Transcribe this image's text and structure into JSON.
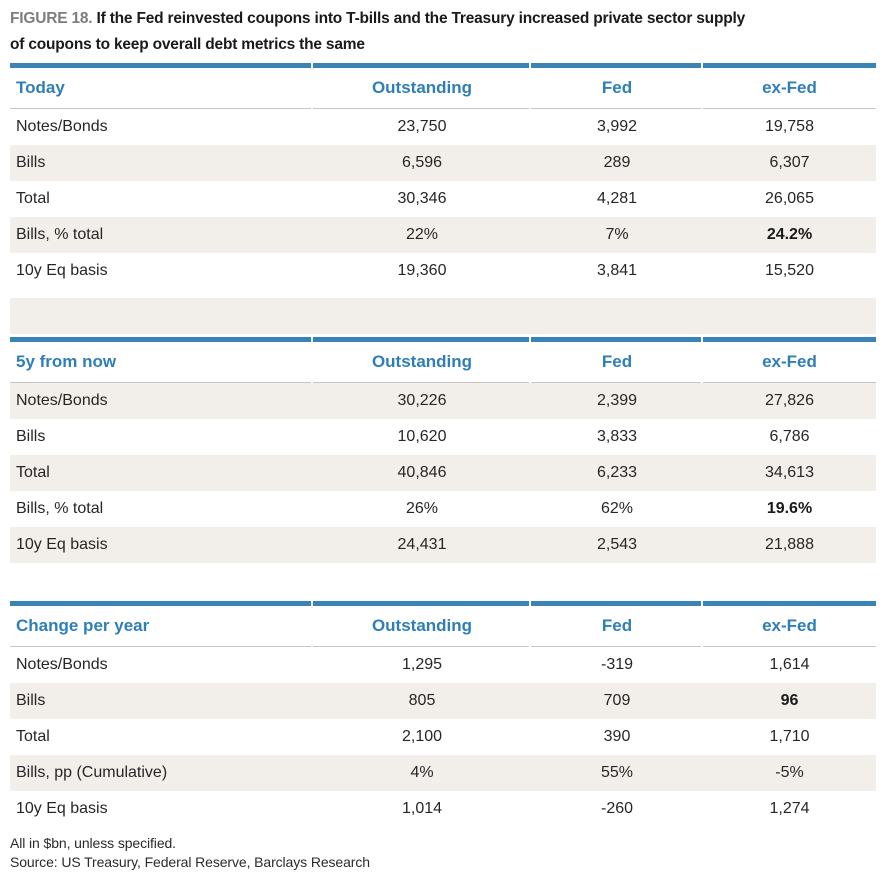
{
  "figure": {
    "label": "FIGURE 18.",
    "title_lines": [
      "If the Fed reinvested coupons into T-bills and the Treasury increased private sector supply",
      "of coupons to keep overall debt metrics the same"
    ]
  },
  "columns": [
    "Outstanding",
    "Fed",
    "ex-Fed"
  ],
  "tables": [
    {
      "name": "Today",
      "rows": [
        [
          "Notes/Bonds",
          "23,750",
          "3,992",
          "19,758"
        ],
        [
          "Bills",
          "6,596",
          "289",
          "6,307"
        ],
        [
          "Total",
          "30,346",
          "4,281",
          "26,065"
        ],
        [
          "Bills, % total",
          "22%",
          "7%",
          "24.2%"
        ],
        [
          "10y Eq basis",
          "19,360",
          "3,841",
          "15,520"
        ]
      ]
    },
    {
      "name": "5y from now",
      "rows": [
        [
          "Notes/Bonds",
          "30,226",
          "2,399",
          "27,826"
        ],
        [
          "Bills",
          "10,620",
          "3,833",
          "6,786"
        ],
        [
          "Total",
          "40,846",
          "6,233",
          "34,613"
        ],
        [
          "Bills, % total",
          "26%",
          "62%",
          "19.6%"
        ],
        [
          "10y Eq basis",
          "24,431",
          "2,543",
          "21,888"
        ]
      ]
    },
    {
      "name": "Change per year",
      "rows": [
        [
          "Notes/Bonds",
          "1,295",
          "-319",
          "1,614"
        ],
        [
          "Bills",
          "805",
          "709",
          "96"
        ],
        [
          "Total",
          "2,100",
          "390",
          "1,710"
        ],
        [
          "Bills, pp (Cumulative)",
          "4%",
          "55%",
          "-5%"
        ],
        [
          "10y Eq basis",
          "1,014",
          "-260",
          "1,274"
        ]
      ]
    }
  ],
  "footnotes": [
    "All in $bn, unless specified.",
    "Source: US Treasury, Federal Reserve, Barclays Research"
  ],
  "colors": {
    "accent_blue_text": "#2e7fb7",
    "bar_blue": "#3983b6",
    "stripe_beige": "#f2efeb",
    "header_underline_gray": "#c6c5c1",
    "figure_label_gray": "#7d7d7d"
  }
}
